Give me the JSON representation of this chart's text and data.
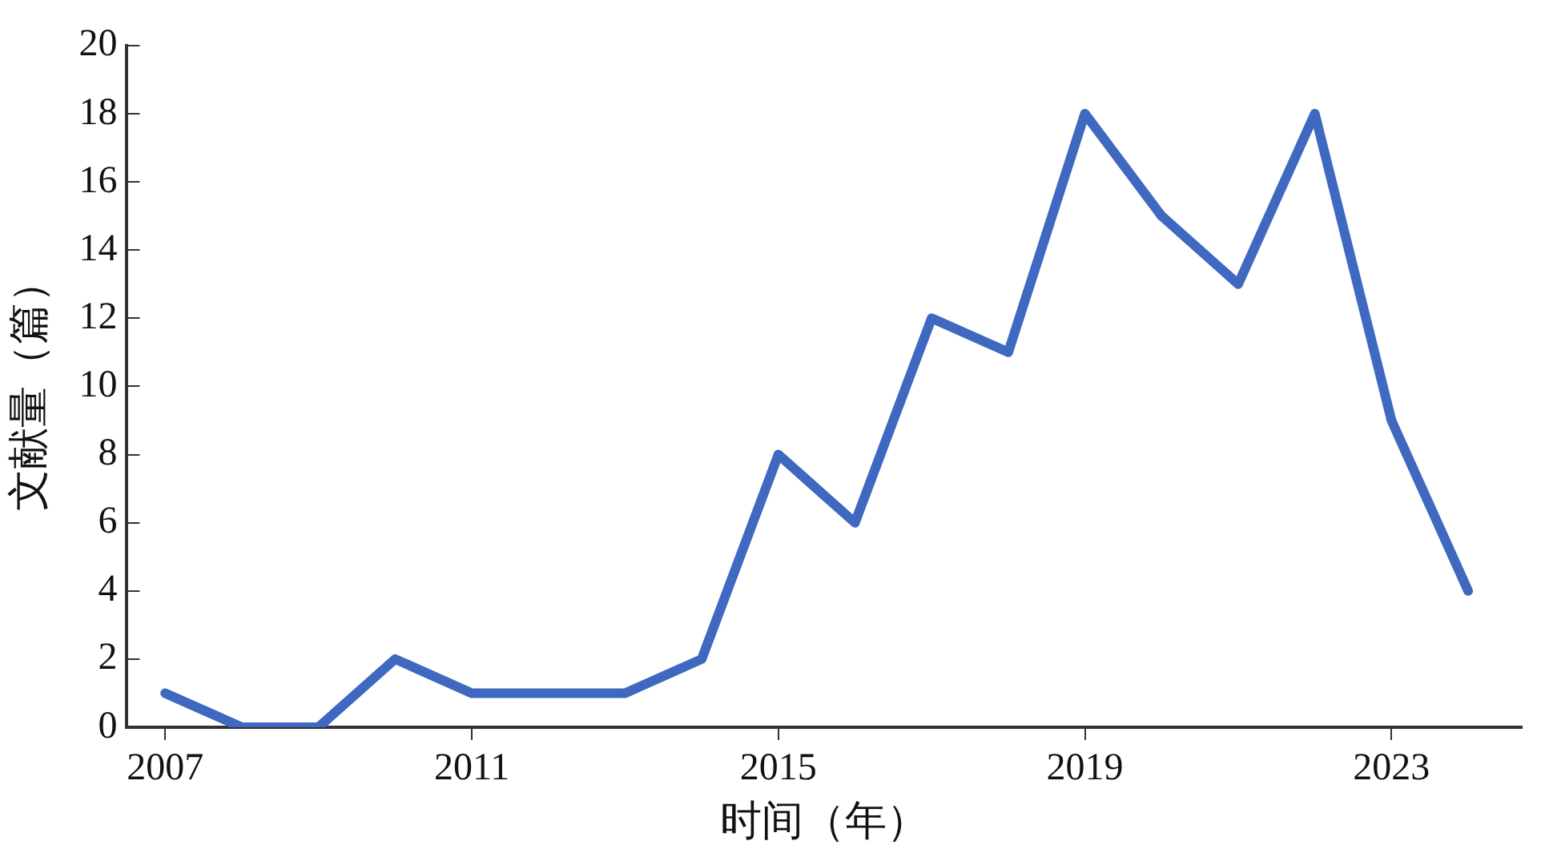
{
  "chart_data": {
    "type": "line",
    "xlabel": "时间（年）",
    "ylabel": "文献量（篇）",
    "x": [
      2007,
      2008,
      2009,
      2010,
      2011,
      2012,
      2013,
      2014,
      2015,
      2016,
      2017,
      2018,
      2019,
      2020,
      2021,
      2022,
      2023,
      2024
    ],
    "series": [
      {
        "color": "#3f68c0",
        "values": [
          1,
          0,
          0,
          2,
          1,
          1,
          1,
          2,
          8,
          6,
          12,
          11,
          18,
          15,
          13,
          18,
          9,
          4
        ]
      }
    ],
    "xlim": [
      2006.5,
      2024.7
    ],
    "xticks": [
      2007,
      2011,
      2015,
      2019,
      2023
    ],
    "ylim": [
      0,
      20
    ],
    "yticks": [
      0,
      2,
      4,
      6,
      8,
      10,
      12,
      14,
      16,
      18,
      20
    ],
    "grid": false,
    "legend": false,
    "marker": "none",
    "line_style": "solid"
  }
}
